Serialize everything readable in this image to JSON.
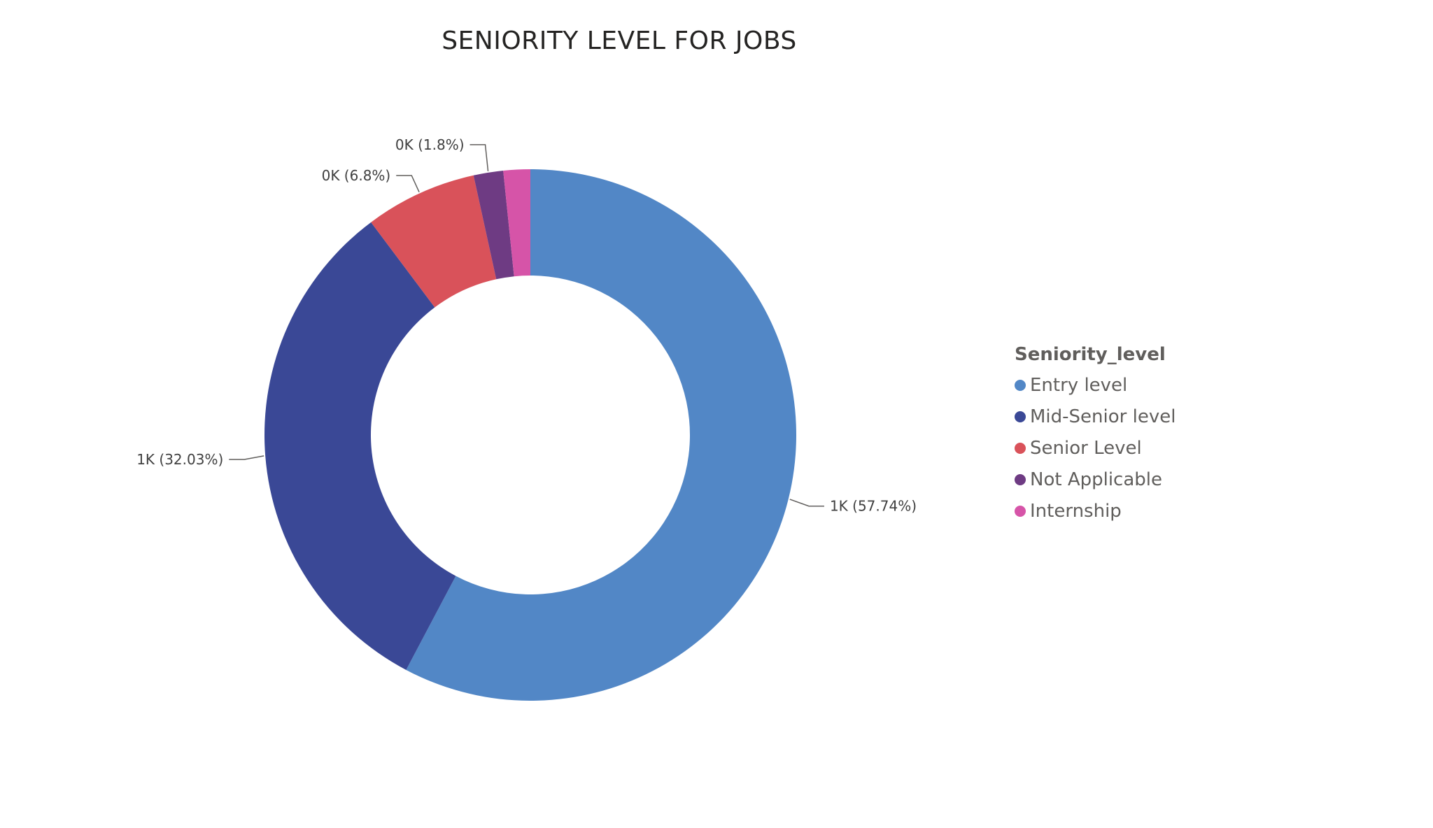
{
  "chart_data": {
    "type": "pie",
    "subtype": "donut",
    "title": "SENIORITY LEVEL FOR JOBS",
    "legend_title": "Seniority_level",
    "legend_position": "right",
    "categories": [
      "Entry level",
      "Mid-Senior level",
      "Senior Level",
      "Not Applicable",
      "Internship"
    ],
    "values": [
      57.74,
      32.03,
      6.8,
      1.8,
      1.63
    ],
    "colors": [
      "#5287c6",
      "#3a4896",
      "#d9525a",
      "#6e3b83",
      "#d654a8"
    ],
    "data_labels": [
      "1K (57.74%)",
      "1K (32.03%)",
      "0K (6.8%)",
      "0K (1.8%)",
      ""
    ]
  }
}
